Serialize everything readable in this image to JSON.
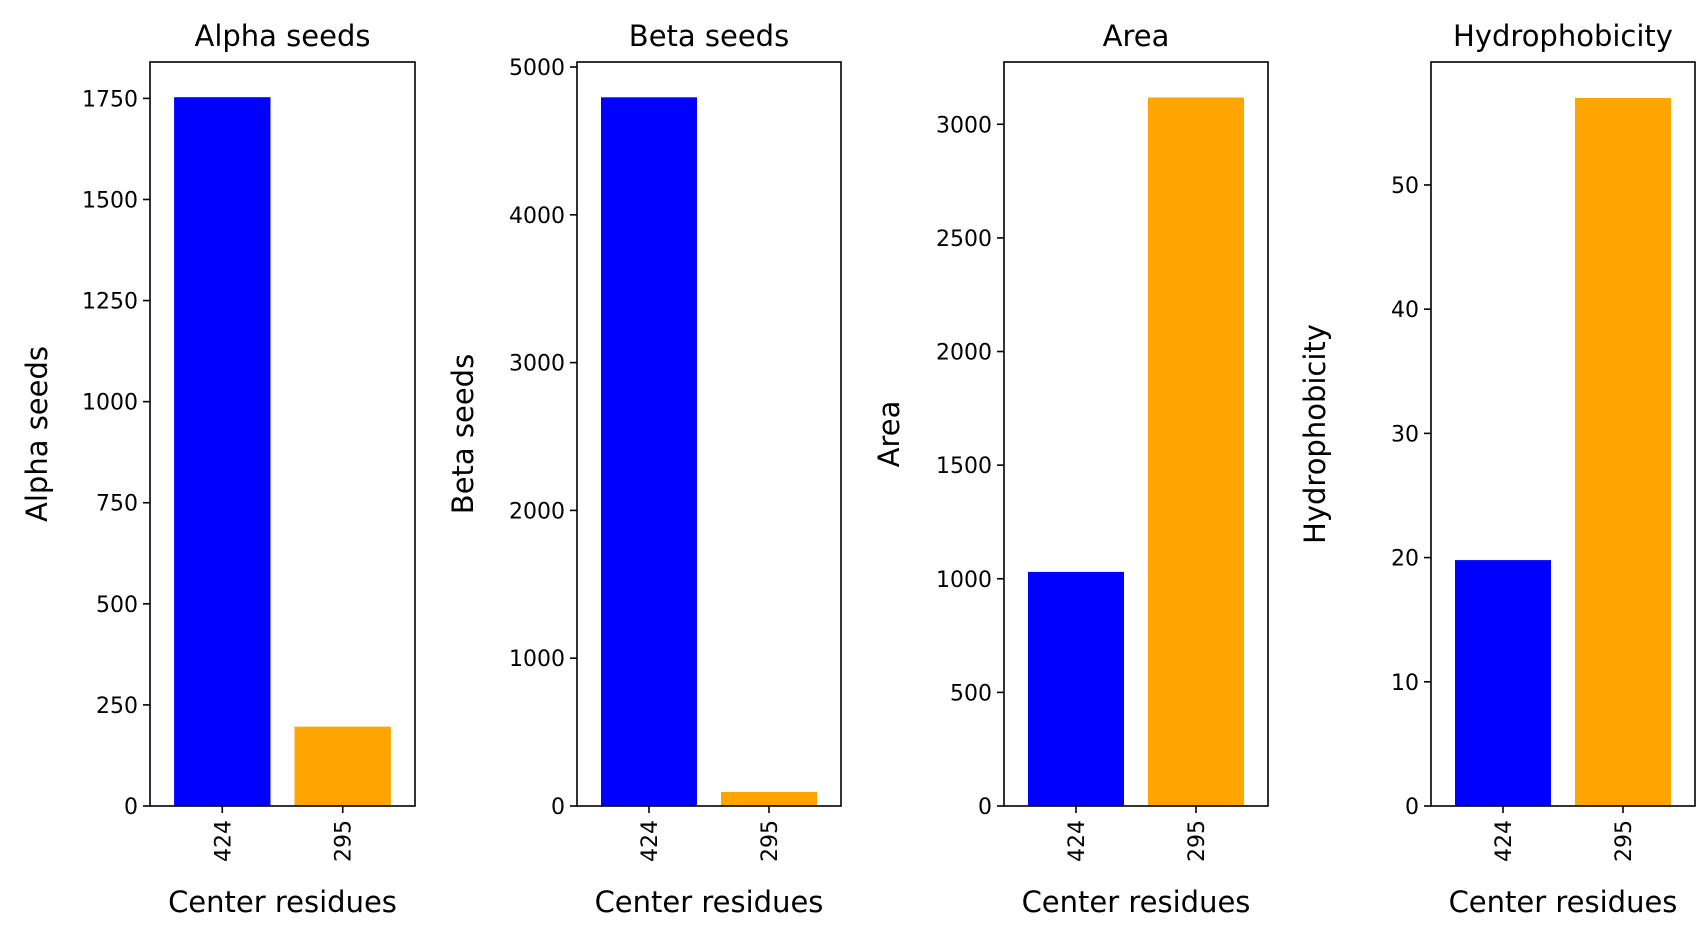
{
  "colors": {
    "series_a": "#0000ff",
    "series_b": "#ffa500"
  },
  "chart_data": [
    {
      "type": "bar",
      "title": "Alpha seeds",
      "xlabel": "Center residues",
      "ylabel": "Alpha seeds",
      "categories": [
        "424",
        "295"
      ],
      "values": [
        1753,
        196
      ],
      "ylim": [
        0,
        1840
      ],
      "yticks": [
        0,
        250,
        500,
        750,
        1000,
        1250,
        1500,
        1750
      ],
      "grid": false
    },
    {
      "type": "bar",
      "title": "Beta seeds",
      "xlabel": "Center residues",
      "ylabel": "Beta seeds",
      "categories": [
        "424",
        "295"
      ],
      "values": [
        4795,
        95
      ],
      "ylim": [
        0,
        5034
      ],
      "yticks": [
        0,
        1000,
        2000,
        3000,
        4000,
        5000
      ],
      "grid": false
    },
    {
      "type": "bar",
      "title": "Area",
      "xlabel": "Center residues",
      "ylabel": "Area",
      "categories": [
        "424",
        "295"
      ],
      "values": [
        1030,
        3118
      ],
      "ylim": [
        0,
        3274
      ],
      "yticks": [
        0,
        500,
        1000,
        1500,
        2000,
        2500,
        3000
      ],
      "grid": false
    },
    {
      "type": "bar",
      "title": "Hydrophobicity",
      "xlabel": "Center residues",
      "ylabel": "Hydrophobicity",
      "categories": [
        "424",
        "295"
      ],
      "values": [
        19.8,
        57.0
      ],
      "ylim": [
        0,
        59.9
      ],
      "yticks": [
        0,
        10,
        20,
        30,
        40,
        50
      ],
      "grid": false
    }
  ]
}
